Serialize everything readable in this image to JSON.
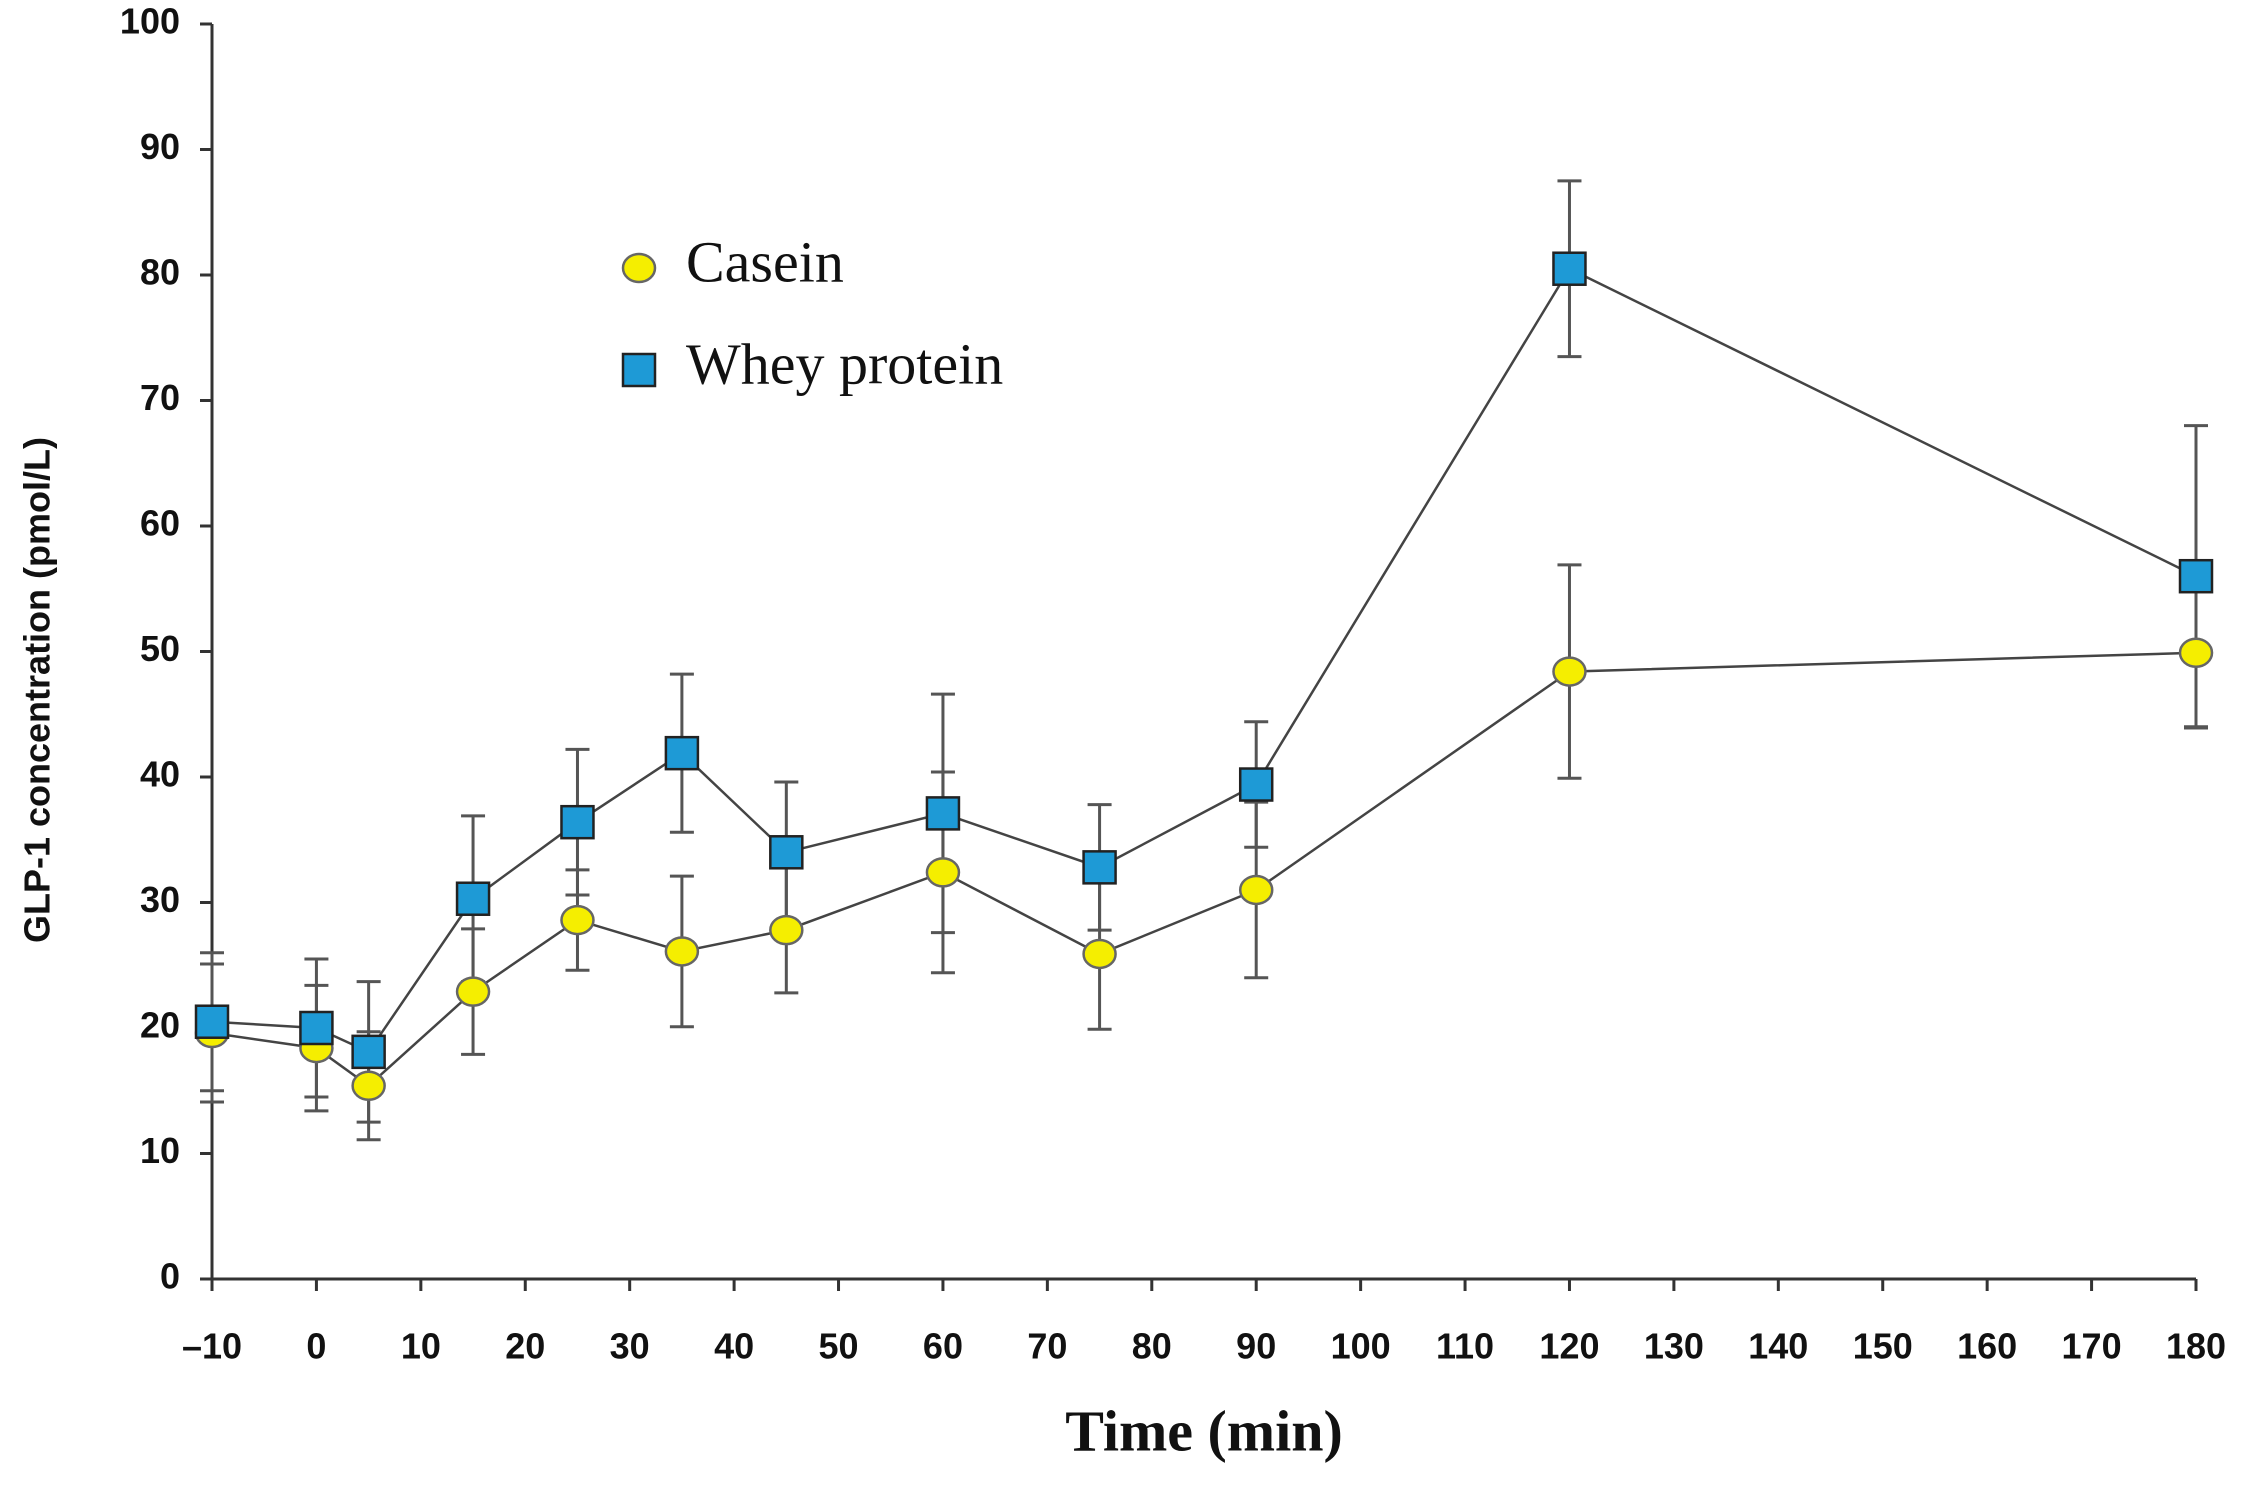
{
  "chart_data": {
    "type": "line",
    "x_label": "Time (min)",
    "y_label": "GLP-1 concentration (pmol/L)",
    "x": [
      -10,
      0,
      5,
      15,
      25,
      35,
      45,
      60,
      75,
      90,
      120,
      180
    ],
    "series": [
      {
        "name": "Casein",
        "color": "#f5ee00",
        "marker": "circle",
        "values": [
          19.6,
          18.4,
          15.4,
          22.9,
          28.6,
          26.1,
          27.8,
          32.4,
          25.9,
          31.0,
          48.4,
          49.9
        ],
        "errors": [
          5.5,
          5.0,
          4.3,
          5.0,
          4.0,
          6.0,
          5.0,
          8.0,
          6.0,
          7.0,
          8.5,
          6.0
        ]
      },
      {
        "name": "Whey protein",
        "color": "#1e9ad6",
        "marker": "square",
        "values": [
          20.5,
          20.0,
          18.1,
          30.3,
          36.4,
          41.9,
          34.0,
          37.1,
          32.8,
          39.4,
          80.5,
          56.0
        ],
        "errors": [
          5.5,
          5.5,
          5.6,
          6.6,
          5.8,
          6.3,
          5.6,
          9.5,
          5.0,
          5.0,
          7.0,
          12.0
        ]
      }
    ],
    "xlim": [
      -10,
      180
    ],
    "xticks": [
      {
        "value": -10,
        "label": "–10"
      },
      0,
      10,
      20,
      30,
      40,
      50,
      60,
      70,
      80,
      90,
      100,
      110,
      120,
      130,
      140,
      150,
      160,
      170,
      180
    ],
    "ylim": [
      0,
      100
    ],
    "yticks": [
      0,
      10,
      20,
      30,
      40,
      50,
      60,
      70,
      80,
      90,
      100
    ],
    "grid": false
  }
}
